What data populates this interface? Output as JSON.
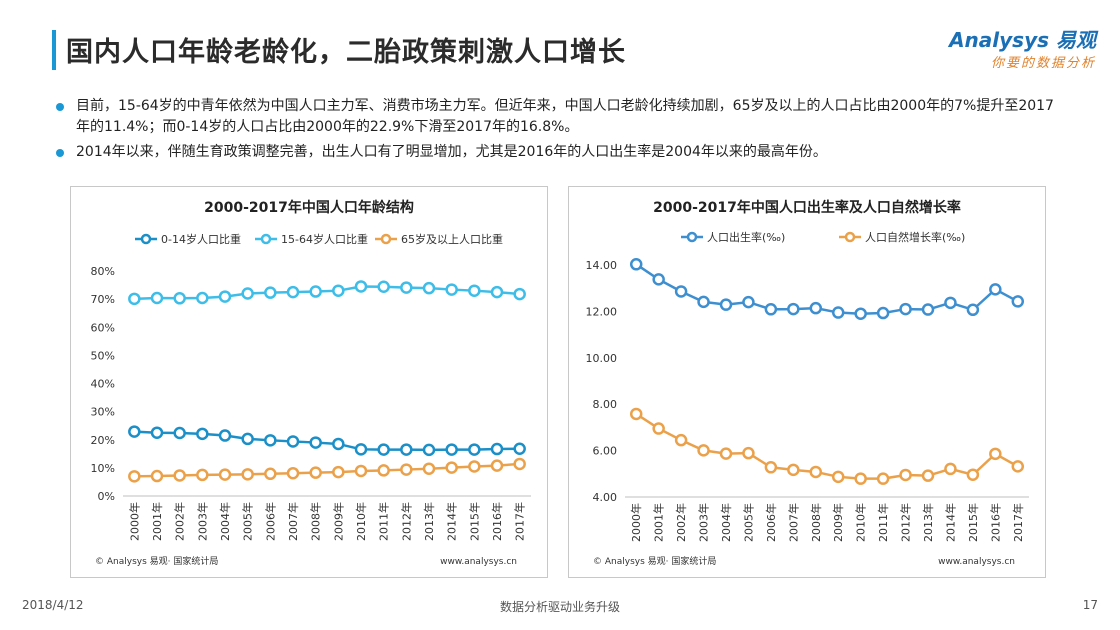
{
  "header": {
    "title": "国内人口年龄老龄化，二胎政策刺激人口增长",
    "logo_main": "Analysys 易观",
    "logo_sub": "你要的数据分析"
  },
  "bullets": [
    "目前，15-64岁的中青年依然为中国人口主力军、消费市场主力军。但近年来，中国人口老龄化持续加剧，65岁及以上的人口占比由2000年的7%提升至2017年的11.4%；而0-14岁的人口占比由2000年的22.9%下滑至2017年的16.8%。",
    "2014年以来，伴随生育政策调整完善，出生人口有了明显增加，尤其是2016年的人口出生率是2004年以来的最高年份。"
  ],
  "footer": {
    "date": "2018/4/12",
    "center": "数据分析驱动业务升级",
    "page": "17"
  },
  "colors": {
    "accent": "#1a98d5",
    "series_dark_blue": "#1a8fc8",
    "series_light_blue": "#3dbde8",
    "series_orange": "#eba14a"
  },
  "chart_data": [
    {
      "type": "line",
      "title": "2000-2017年中国人口年龄结构",
      "categories": [
        "2000年",
        "2001年",
        "2002年",
        "2003年",
        "2004年",
        "2005年",
        "2006年",
        "2007年",
        "2008年",
        "2009年",
        "2010年",
        "2011年",
        "2012年",
        "2013年",
        "2014年",
        "2015年",
        "2016年",
        "2017年"
      ],
      "series": [
        {
          "name": "0-14岁人口比重",
          "color": "#1a8fc8",
          "values": [
            22.9,
            22.5,
            22.4,
            22.1,
            21.5,
            20.3,
            19.8,
            19.4,
            19.0,
            18.5,
            16.6,
            16.5,
            16.5,
            16.4,
            16.5,
            16.5,
            16.7,
            16.8
          ]
        },
        {
          "name": "15-64岁人口比重",
          "color": "#3dbde8",
          "values": [
            70.1,
            70.4,
            70.3,
            70.4,
            70.9,
            72.0,
            72.3,
            72.5,
            72.7,
            73.0,
            74.5,
            74.4,
            74.1,
            73.9,
            73.4,
            73.0,
            72.5,
            71.8
          ]
        },
        {
          "name": "65岁及以上人口比重",
          "color": "#eba14a",
          "values": [
            7.0,
            7.1,
            7.3,
            7.5,
            7.6,
            7.7,
            7.9,
            8.1,
            8.3,
            8.5,
            8.9,
            9.1,
            9.4,
            9.7,
            10.1,
            10.5,
            10.8,
            11.4
          ]
        }
      ],
      "yticks": [
        "0%",
        "10%",
        "20%",
        "30%",
        "40%",
        "50%",
        "60%",
        "70%",
        "80%"
      ],
      "ylim": [
        0,
        80
      ],
      "legend": "top",
      "source": "© Analysys 易观· 国家统计局",
      "url": "www.analysys.cn"
    },
    {
      "type": "line",
      "title": "2000-2017年中国人口出生率及人口自然增长率",
      "categories": [
        "2000年",
        "2001年",
        "2002年",
        "2003年",
        "2004年",
        "2005年",
        "2006年",
        "2007年",
        "2008年",
        "2009年",
        "2010年",
        "2011年",
        "2012年",
        "2013年",
        "2014年",
        "2015年",
        "2016年",
        "2017年"
      ],
      "series": [
        {
          "name": "人口出生率(‰)",
          "color": "#3d8fd0",
          "values": [
            14.03,
            13.38,
            12.86,
            12.41,
            12.29,
            12.4,
            12.09,
            12.1,
            12.14,
            11.95,
            11.9,
            11.93,
            12.1,
            12.08,
            12.37,
            12.07,
            12.95,
            12.43
          ]
        },
        {
          "name": "人口自然增长率(‰)",
          "color": "#eba14a",
          "values": [
            7.58,
            6.95,
            6.45,
            6.01,
            5.87,
            5.89,
            5.28,
            5.17,
            5.08,
            4.87,
            4.79,
            4.79,
            4.95,
            4.92,
            5.21,
            4.96,
            5.86,
            5.32
          ]
        }
      ],
      "yticks": [
        "4.00",
        "6.00",
        "8.00",
        "10.00",
        "12.00",
        "14.00"
      ],
      "ylim": [
        4,
        14
      ],
      "legend": "top",
      "source": "© Analysys 易观· 国家统计局",
      "url": "www.analysys.cn"
    }
  ]
}
